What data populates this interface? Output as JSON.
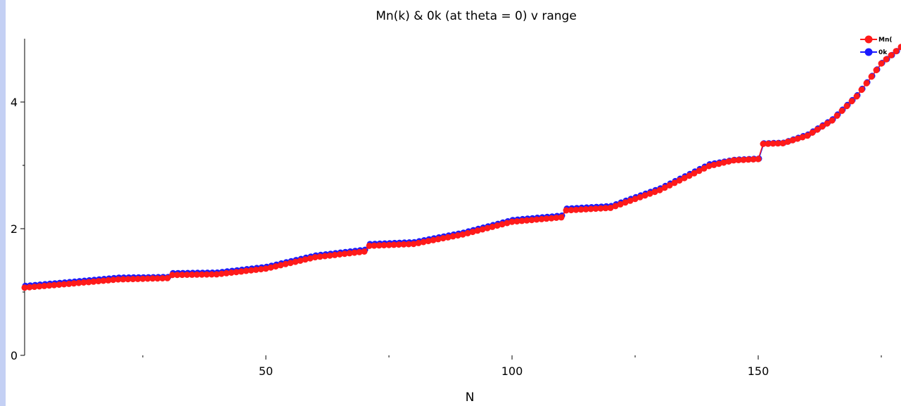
{
  "chart_data": {
    "type": "line",
    "title": "Mn(k) & 0k (at theta = 0) v range",
    "xlabel": "N",
    "ylabel": "",
    "xlim": [
      1,
      179
    ],
    "ylim": [
      0,
      5
    ],
    "x_ticks": [
      50,
      100,
      150
    ],
    "y_ticks": [
      0,
      2,
      4
    ],
    "grid": false,
    "legend_position": "top-right",
    "legend": [
      "Mn(",
      "0k"
    ],
    "anchors": [
      [
        1,
        1.08,
        1.08
      ],
      [
        10,
        1.14,
        1.14
      ],
      [
        20,
        1.21,
        1.21
      ],
      [
        30,
        1.23,
        1.22
      ],
      [
        31,
        1.28,
        1.28
      ],
      [
        40,
        1.29,
        1.29
      ],
      [
        50,
        1.38,
        1.38
      ],
      [
        60,
        1.56,
        1.56
      ],
      [
        70,
        1.65,
        1.65
      ],
      [
        71,
        1.74,
        1.74
      ],
      [
        80,
        1.77,
        1.77
      ],
      [
        90,
        1.92,
        1.92
      ],
      [
        100,
        2.12,
        2.12
      ],
      [
        110,
        2.19,
        2.19
      ],
      [
        111,
        2.3,
        2.3
      ],
      [
        120,
        2.34,
        2.34
      ],
      [
        130,
        2.62,
        2.62
      ],
      [
        140,
        3.0,
        3.0
      ],
      [
        145,
        3.09,
        3.07
      ],
      [
        150,
        3.11,
        3.09
      ],
      [
        151,
        3.35,
        3.33
      ],
      [
        155,
        3.36,
        3.34
      ],
      [
        160,
        3.48,
        3.47
      ],
      [
        165,
        3.72,
        3.71
      ],
      [
        170,
        4.1,
        4.09
      ],
      [
        175,
        4.62,
        4.6
      ],
      [
        179,
        4.88,
        4.85
      ]
    ],
    "series": [
      {
        "name": "Mn(",
        "color": "#ff1a1a"
      },
      {
        "name": "0k",
        "color": "#1a1aff"
      }
    ]
  }
}
